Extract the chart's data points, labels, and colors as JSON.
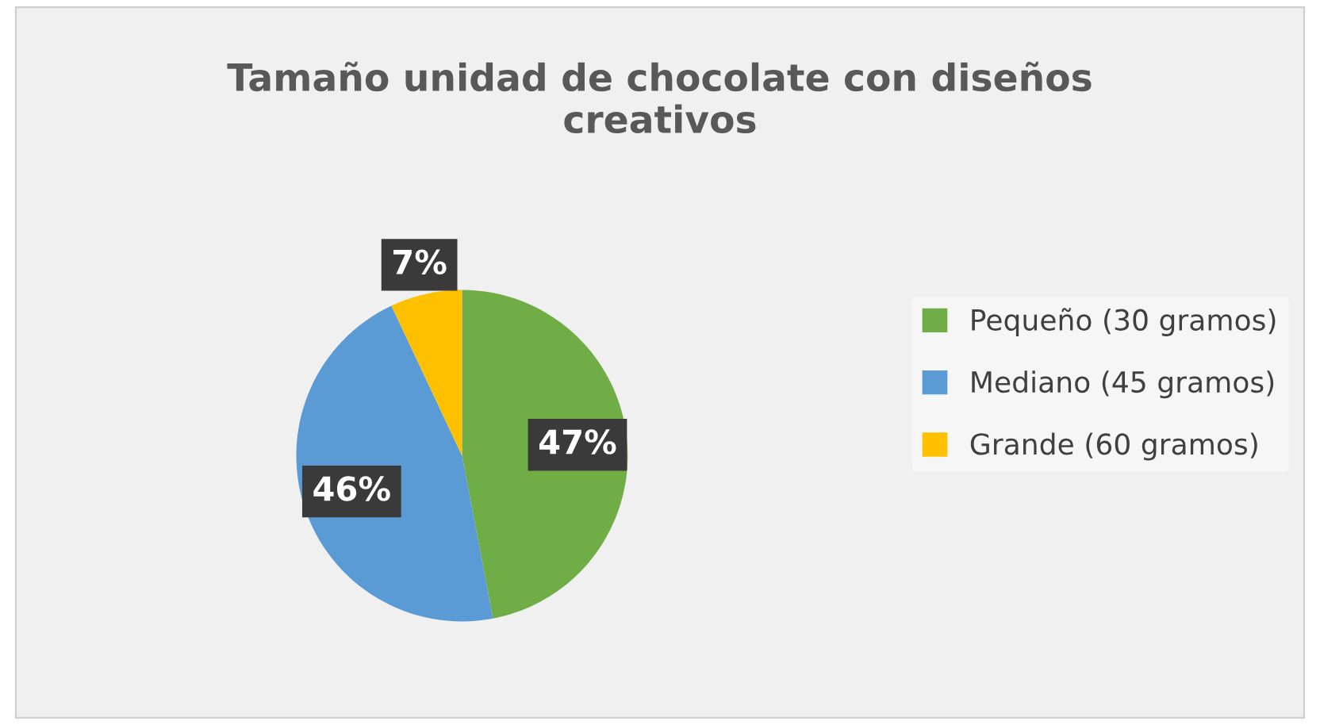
{
  "chart_data": {
    "type": "pie",
    "title": "Tamaño unidad de chocolate con diseños creativos",
    "categories": [
      "Pequeño (30 gramos)",
      "Mediano (45 gramos)",
      "Grande (60 gramos)"
    ],
    "values": [
      47,
      46,
      7
    ],
    "colors": [
      "#70ad47",
      "#5b9bd5",
      "#ffc000"
    ],
    "value_labels": [
      "47%",
      "46%",
      "7%"
    ],
    "legend": "right"
  }
}
